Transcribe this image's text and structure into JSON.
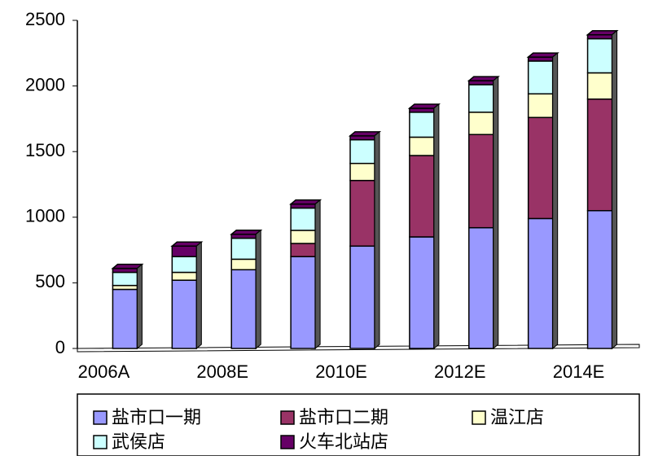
{
  "chart_data": {
    "type": "stacked-bar",
    "categories": [
      "2006A",
      null,
      "2008E",
      null,
      "2010E",
      null,
      "2012E",
      null,
      "2014E"
    ],
    "series": [
      {
        "name": "盐市口一期",
        "color": "#9999ff",
        "values": [
          450,
          520,
          600,
          700,
          780,
          850,
          920,
          990,
          1050
        ]
      },
      {
        "name": "盐市口二期",
        "color": "#993366",
        "values": [
          0,
          0,
          0,
          100,
          500,
          620,
          710,
          770,
          850
        ]
      },
      {
        "name": "温江店",
        "color": "#ffffcc",
        "values": [
          30,
          60,
          80,
          100,
          130,
          140,
          170,
          180,
          200
        ]
      },
      {
        "name": "武侯店",
        "color": "#ccffff",
        "values": [
          100,
          120,
          160,
          170,
          180,
          190,
          210,
          250,
          260
        ]
      },
      {
        "name": "火车北站店",
        "color": "#660066",
        "values": [
          30,
          80,
          30,
          30,
          30,
          30,
          30,
          30,
          30
        ]
      }
    ],
    "ylim": [
      0,
      2500
    ],
    "yticks": [
      0,
      500,
      1000,
      1500,
      2000,
      2500
    ]
  }
}
